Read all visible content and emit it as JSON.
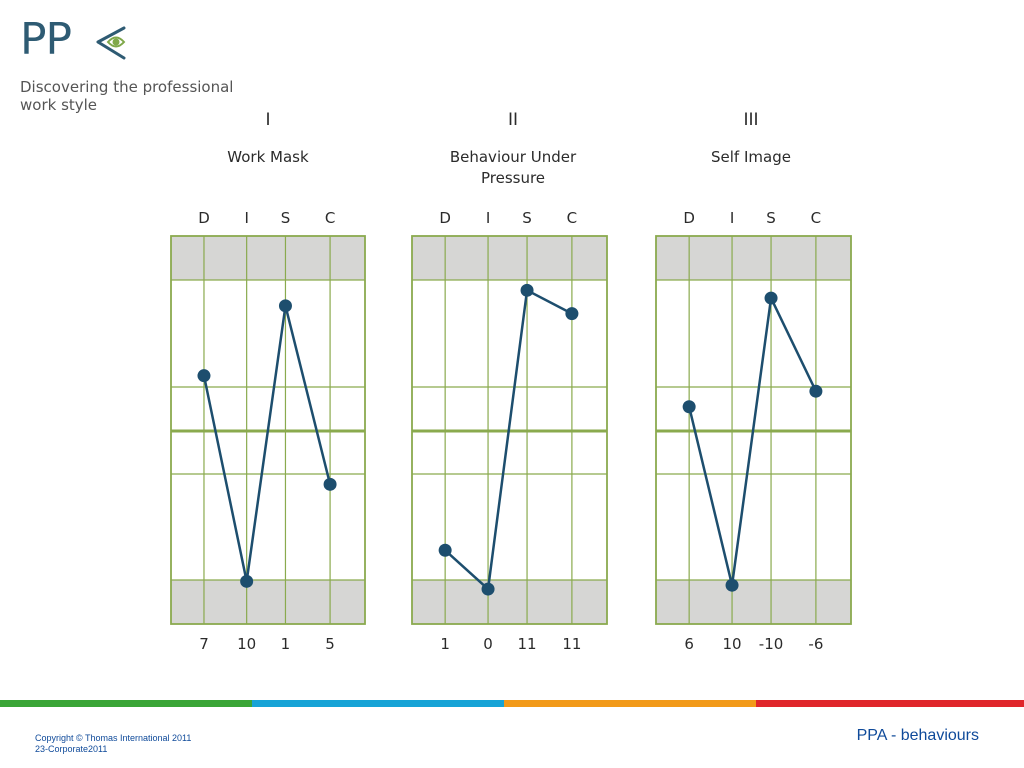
{
  "logo": {
    "text": "PP",
    "tagline_line1": "Discovering the professional",
    "tagline_line2": "work style"
  },
  "chart_data": [
    {
      "type": "line",
      "numeral": "I",
      "title": "Work Mask",
      "categories": [
        "D",
        "I",
        "S",
        "C"
      ],
      "values": [
        7,
        10,
        1,
        5
      ],
      "value_labels": [
        "7",
        "10",
        "1",
        "5"
      ],
      "plot_position": [
        0.36,
        0.89,
        0.18,
        0.64
      ]
    },
    {
      "type": "line",
      "numeral": "II",
      "title": "Behaviour Under Pressure",
      "categories": [
        "D",
        "I",
        "S",
        "C"
      ],
      "values": [
        1,
        0,
        11,
        11
      ],
      "value_labels": [
        "1",
        "0",
        "11",
        "11"
      ],
      "plot_position": [
        0.81,
        0.91,
        0.14,
        0.2
      ]
    },
    {
      "type": "line",
      "numeral": "III",
      "title": "Self Image",
      "categories": [
        "D",
        "I",
        "S",
        "C"
      ],
      "values": [
        6,
        10,
        -10,
        -6
      ],
      "value_labels": [
        "6",
        "10",
        "-10",
        "-6"
      ],
      "plot_position": [
        0.44,
        0.9,
        0.16,
        0.4
      ]
    }
  ],
  "colors": {
    "line": "#1d4e6e",
    "grid": "#8aaa4e",
    "band": "#d6d6d4",
    "brand": "#2e5b73",
    "footer_text": "#0f4a9a",
    "stripe": [
      "#3aa537",
      "#17a3d6",
      "#f29a1a",
      "#e0262b"
    ]
  },
  "footer": {
    "copyright_line1": "Copyright © Thomas International 2011",
    "copyright_line2": "23-Corporate2011",
    "right_text": "PPA - behaviours"
  }
}
